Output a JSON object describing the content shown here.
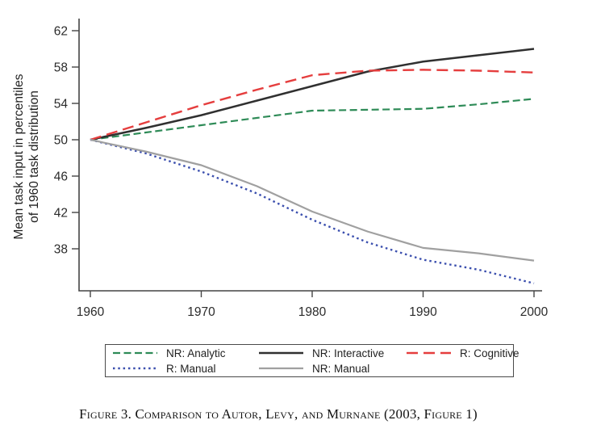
{
  "figure": {
    "caption": "Figure 3. Comparison to Autor, Levy, and Murnane (2003, Figure 1)",
    "y_axis_title_line1": "Mean task input in percentiles",
    "y_axis_title_line2": "of 1960 task distribution"
  },
  "chart_data": {
    "type": "line",
    "title": "",
    "xlabel": "",
    "ylabel": "Mean task input in percentiles of 1960 task distribution",
    "grid": false,
    "legend_position": "bottom",
    "xlim": [
      1959,
      2000.7
    ],
    "ylim": [
      33.4,
      63.3
    ],
    "xticks": [
      1960,
      1970,
      1980,
      1990,
      2000
    ],
    "yticks": [
      62,
      58,
      54,
      50,
      46,
      42,
      38
    ],
    "x": [
      1960,
      1965,
      1970,
      1975,
      1980,
      1985,
      1990,
      1995,
      2000
    ],
    "series": [
      {
        "name": "NR: Analytic",
        "color": "#2e8b57",
        "style": "dashed",
        "values": [
          50,
          50.8,
          51.6,
          52.4,
          53.2,
          53.3,
          53.4,
          53.9,
          54.5
        ]
      },
      {
        "name": "NR: Interactive",
        "color": "#303030",
        "style": "solid",
        "values": [
          50,
          51.3,
          52.7,
          54.3,
          55.9,
          57.5,
          58.6,
          59.3,
          60.0
        ]
      },
      {
        "name": "R: Cognitive",
        "color": "#e53e3e",
        "style": "long-dash",
        "values": [
          50,
          51.9,
          53.8,
          55.5,
          57.1,
          57.6,
          57.7,
          57.6,
          57.4
        ]
      },
      {
        "name": "R: Manual",
        "color": "#3b4fae",
        "style": "dotted",
        "values": [
          50,
          48.5,
          46.5,
          44.1,
          41.2,
          38.7,
          36.8,
          35.7,
          34.2
        ]
      },
      {
        "name": "NR: Manual",
        "color": "#a0a0a0",
        "style": "solid",
        "values": [
          50,
          48.7,
          47.2,
          44.9,
          42.1,
          39.9,
          38.1,
          37.5,
          36.7
        ]
      }
    ],
    "legend_order": [
      0,
      1,
      2,
      3,
      4
    ]
  }
}
